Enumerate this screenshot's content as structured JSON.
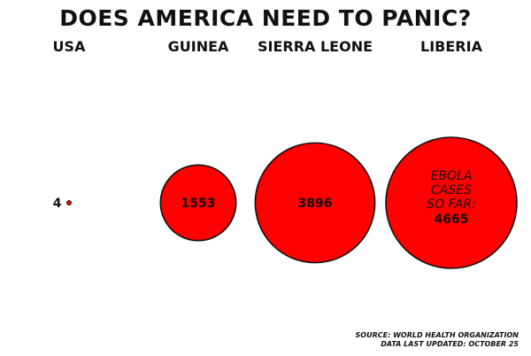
{
  "title": "DOES AMERICA NEED TO PANIC?",
  "annotation_lines": [
    "EBOLA",
    "CASES",
    "SO FAR:"
  ],
  "source_lines": [
    "SOURCE: WORLD HEALTH ORGANIZATION",
    "DATA LAST UPDATED: OCTOBER 25"
  ],
  "colors": {
    "bubble_fill": "#ff0000",
    "bubble_stroke": "#111111",
    "text": "#111111"
  },
  "chart_data": {
    "type": "bubble",
    "title": "DOES AMERICA NEED TO PANIC?",
    "categories": [
      "USA",
      "GUINEA",
      "SIERRA LEONE",
      "LIBERIA"
    ],
    "values": [
      4,
      1553,
      3896,
      4665
    ],
    "legend": "none",
    "grid": false
  }
}
